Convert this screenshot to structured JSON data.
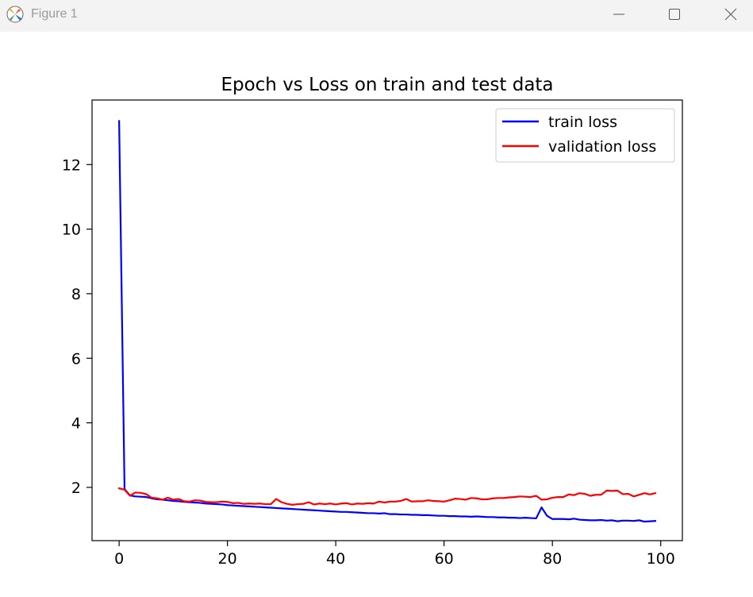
{
  "window": {
    "title": "Figure 1",
    "icons": {
      "app": "matplotlib-icon",
      "minimize": "minimize-icon",
      "maximize": "maximize-icon",
      "close": "close-icon"
    }
  },
  "chart_data": {
    "type": "line",
    "title": "Epoch vs Loss on train and test data",
    "xlabel": "",
    "ylabel": "",
    "xlim": [
      -5,
      104
    ],
    "ylim": [
      0.35,
      14.0
    ],
    "xticks": [
      0,
      20,
      40,
      60,
      80,
      100
    ],
    "yticks": [
      2,
      4,
      6,
      8,
      10,
      12
    ],
    "grid": false,
    "legend_position": "top-right",
    "x": [
      0,
      1,
      2,
      3,
      4,
      5,
      6,
      7,
      8,
      9,
      10,
      11,
      12,
      13,
      14,
      15,
      16,
      17,
      18,
      19,
      20,
      21,
      22,
      23,
      24,
      25,
      26,
      27,
      28,
      29,
      30,
      31,
      32,
      33,
      34,
      35,
      36,
      37,
      38,
      39,
      40,
      41,
      42,
      43,
      44,
      45,
      46,
      47,
      48,
      49,
      50,
      51,
      52,
      53,
      54,
      55,
      56,
      57,
      58,
      59,
      60,
      61,
      62,
      63,
      64,
      65,
      66,
      67,
      68,
      69,
      70,
      71,
      72,
      73,
      74,
      75,
      76,
      77,
      78,
      79,
      80,
      81,
      82,
      83,
      84,
      85,
      86,
      87,
      88,
      89,
      90,
      91,
      92,
      93,
      94,
      95,
      96,
      97,
      98,
      99
    ],
    "series": [
      {
        "name": "train loss",
        "color": "#0000ff",
        "values": [
          13.35,
          1.95,
          1.75,
          1.72,
          1.71,
          1.7,
          1.66,
          1.63,
          1.62,
          1.6,
          1.58,
          1.57,
          1.55,
          1.54,
          1.53,
          1.52,
          1.5,
          1.49,
          1.48,
          1.47,
          1.45,
          1.44,
          1.43,
          1.42,
          1.41,
          1.4,
          1.39,
          1.38,
          1.37,
          1.36,
          1.35,
          1.34,
          1.33,
          1.32,
          1.31,
          1.3,
          1.29,
          1.28,
          1.27,
          1.26,
          1.25,
          1.24,
          1.24,
          1.23,
          1.22,
          1.21,
          1.2,
          1.2,
          1.19,
          1.2,
          1.17,
          1.17,
          1.16,
          1.16,
          1.15,
          1.15,
          1.14,
          1.14,
          1.13,
          1.12,
          1.12,
          1.11,
          1.11,
          1.1,
          1.1,
          1.09,
          1.1,
          1.09,
          1.08,
          1.08,
          1.07,
          1.07,
          1.06,
          1.06,
          1.05,
          1.06,
          1.05,
          1.04,
          1.38,
          1.12,
          1.02,
          1.02,
          1.02,
          1.01,
          1.03,
          1.0,
          0.99,
          0.98,
          0.98,
          0.99,
          0.97,
          0.98,
          0.95,
          0.97,
          0.97,
          0.96,
          0.98,
          0.94,
          0.95,
          0.96
        ]
      },
      {
        "name": "validation loss",
        "color": "#ff0000",
        "values": [
          1.97,
          1.93,
          1.74,
          1.84,
          1.83,
          1.79,
          1.68,
          1.66,
          1.62,
          1.68,
          1.62,
          1.64,
          1.57,
          1.56,
          1.6,
          1.59,
          1.55,
          1.54,
          1.54,
          1.56,
          1.55,
          1.51,
          1.52,
          1.49,
          1.5,
          1.49,
          1.5,
          1.48,
          1.48,
          1.64,
          1.54,
          1.49,
          1.46,
          1.48,
          1.49,
          1.54,
          1.47,
          1.5,
          1.48,
          1.5,
          1.47,
          1.5,
          1.51,
          1.47,
          1.5,
          1.49,
          1.51,
          1.5,
          1.56,
          1.53,
          1.56,
          1.56,
          1.58,
          1.64,
          1.56,
          1.57,
          1.57,
          1.6,
          1.58,
          1.57,
          1.56,
          1.6,
          1.65,
          1.64,
          1.62,
          1.67,
          1.66,
          1.63,
          1.63,
          1.66,
          1.67,
          1.67,
          1.69,
          1.7,
          1.72,
          1.71,
          1.7,
          1.74,
          1.62,
          1.63,
          1.68,
          1.7,
          1.7,
          1.78,
          1.76,
          1.82,
          1.8,
          1.74,
          1.77,
          1.77,
          1.9,
          1.89,
          1.9,
          1.79,
          1.8,
          1.72,
          1.77,
          1.82,
          1.78,
          1.82
        ]
      }
    ]
  }
}
